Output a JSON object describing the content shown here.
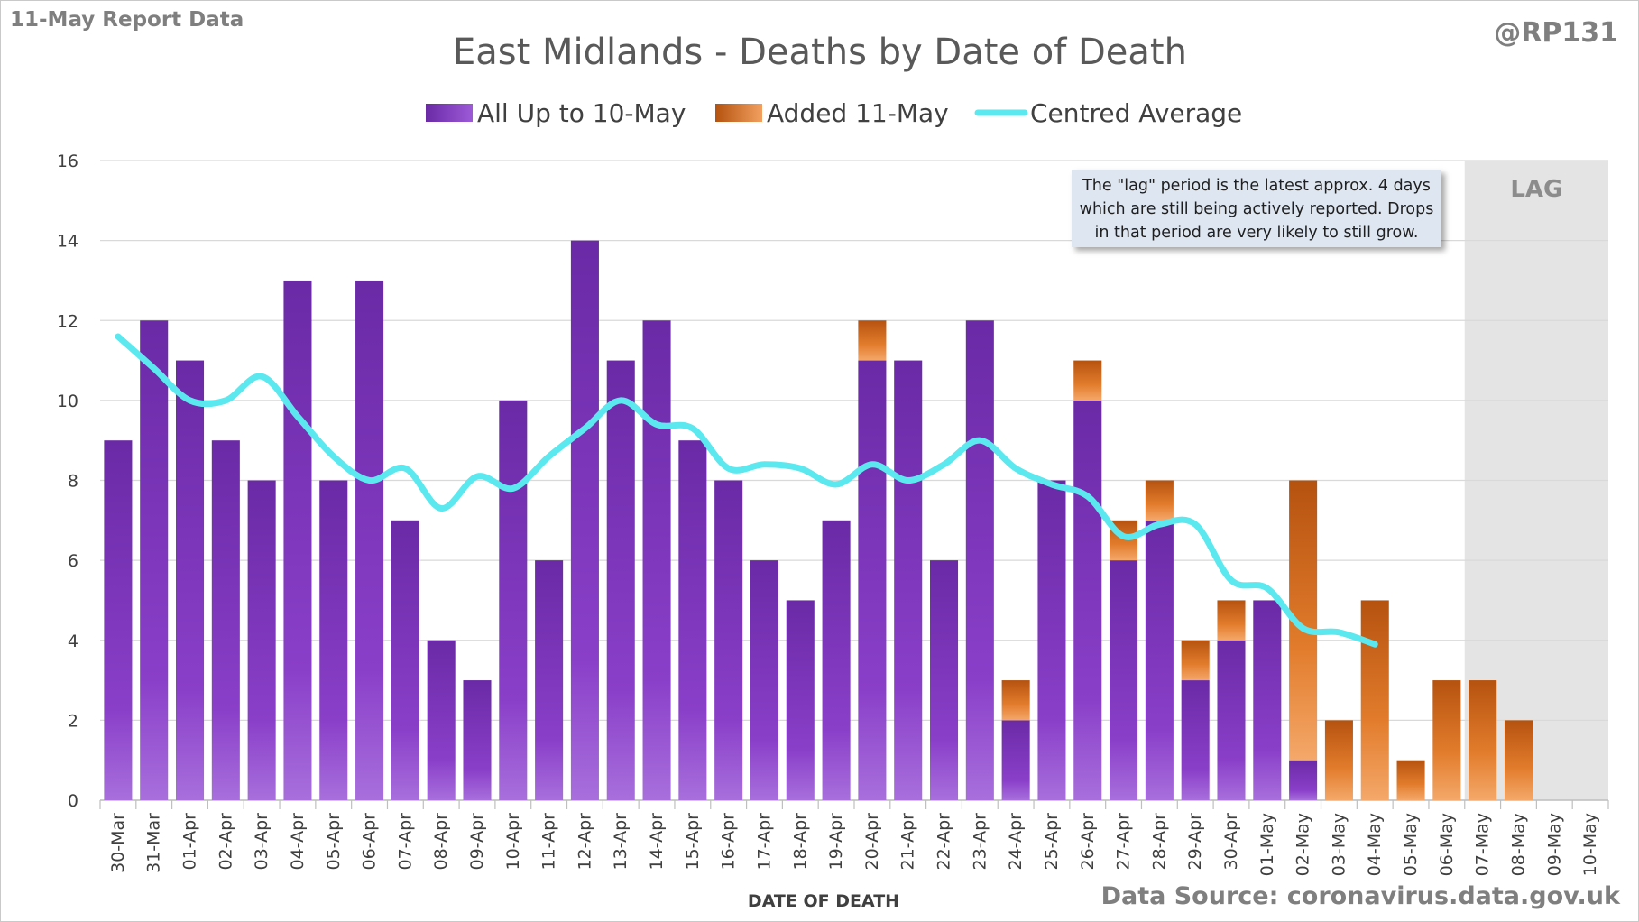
{
  "report_label": "11-May Report Data",
  "author": "@RP131",
  "source": "Data Source: coronavirus.data.gov.uk",
  "note": "The \"lag\" period is the latest approx. 4 days which are still being actively reported. Drops in that period are very likely to still grow.",
  "lag_label": "LAG",
  "colors": {
    "all_up_to": "#7a35b8",
    "added": "#e07b2a",
    "average": "#5ce8ef",
    "lag_band": "#e4e4e4",
    "grid": "#d9d9d9"
  },
  "chart_data": {
    "type": "bar",
    "stacked": true,
    "title": "East Midlands - Deaths by Date of Death",
    "xlabel": "DATE OF DEATH",
    "ylabel": "",
    "ylim": [
      0,
      16
    ],
    "yticks": [
      0,
      2,
      4,
      6,
      8,
      10,
      12,
      14,
      16
    ],
    "grid": true,
    "legend_position": "top",
    "lag_categories": [
      "07-May",
      "08-May",
      "09-May",
      "10-May"
    ],
    "categories": [
      "30-Mar",
      "31-Mar",
      "01-Apr",
      "02-Apr",
      "03-Apr",
      "04-Apr",
      "05-Apr",
      "06-Apr",
      "07-Apr",
      "08-Apr",
      "09-Apr",
      "10-Apr",
      "11-Apr",
      "12-Apr",
      "13-Apr",
      "14-Apr",
      "15-Apr",
      "16-Apr",
      "17-Apr",
      "18-Apr",
      "19-Apr",
      "20-Apr",
      "21-Apr",
      "22-Apr",
      "23-Apr",
      "24-Apr",
      "25-Apr",
      "26-Apr",
      "27-Apr",
      "28-Apr",
      "29-Apr",
      "30-Apr",
      "01-May",
      "02-May",
      "03-May",
      "04-May",
      "05-May",
      "06-May",
      "07-May",
      "08-May",
      "09-May",
      "10-May"
    ],
    "series": [
      {
        "name": "All Up to 10-May",
        "kind": "bar",
        "values": [
          9,
          12,
          11,
          9,
          8,
          13,
          8,
          13,
          7,
          4,
          3,
          10,
          6,
          14,
          11,
          12,
          9,
          8,
          6,
          5,
          7,
          11,
          11,
          6,
          12,
          2,
          8,
          10,
          6,
          7,
          3,
          4,
          5,
          1,
          0,
          0,
          0,
          0,
          0,
          0,
          0,
          0
        ]
      },
      {
        "name": "Added 11-May",
        "kind": "bar",
        "values": [
          0,
          0,
          0,
          0,
          0,
          0,
          0,
          0,
          0,
          0,
          0,
          0,
          0,
          0,
          0,
          0,
          0,
          0,
          0,
          0,
          0,
          1,
          0,
          0,
          0,
          1,
          0,
          1,
          1,
          1,
          1,
          1,
          0,
          7,
          2,
          5,
          1,
          3,
          3,
          2,
          0,
          0
        ]
      },
      {
        "name": "Centred Average",
        "kind": "line",
        "values": [
          11.6,
          10.8,
          10.0,
          10.0,
          10.6,
          9.6,
          8.6,
          8.0,
          8.3,
          7.3,
          8.1,
          7.8,
          8.6,
          9.3,
          10.0,
          9.4,
          9.3,
          8.3,
          8.4,
          8.3,
          7.9,
          8.4,
          8.0,
          8.4,
          9.0,
          8.3,
          7.9,
          7.6,
          6.6,
          6.9,
          6.9,
          5.5,
          5.3,
          4.3,
          4.2,
          3.9,
          null,
          null,
          null,
          null,
          null,
          null
        ]
      }
    ]
  }
}
